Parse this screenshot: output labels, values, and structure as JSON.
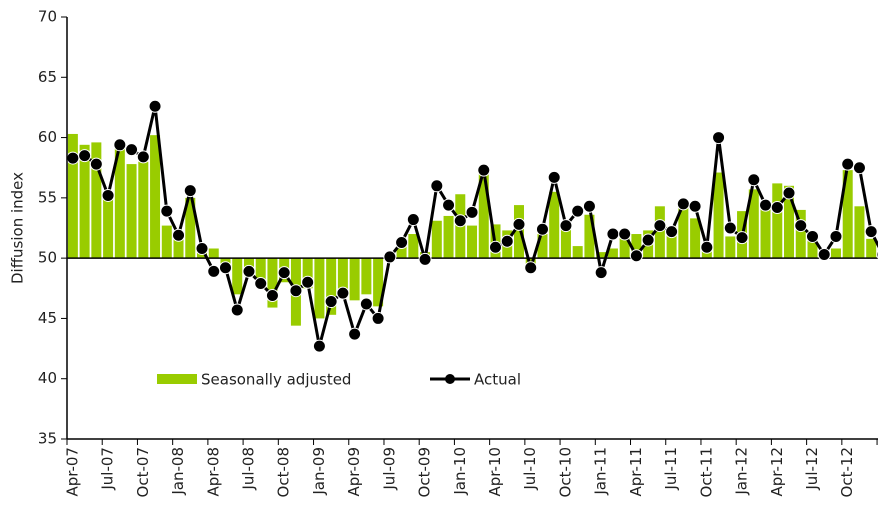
{
  "chart_data": {
    "type": "bar-line",
    "y_axis_label": "Diffusion index",
    "categories": [
      "Apr-07",
      null,
      null,
      "Jul-07",
      null,
      null,
      "Oct-07",
      null,
      null,
      "Jan-08",
      null,
      null,
      "Apr-08",
      null,
      null,
      "Jul-08",
      null,
      null,
      "Oct-08",
      null,
      null,
      "Jan-09",
      null,
      null,
      "Apr-09",
      null,
      null,
      "Jul-09",
      null,
      null,
      "Oct-09",
      null,
      null,
      "Jan-10",
      null,
      null,
      "Apr-10",
      null,
      null,
      "Jul-10",
      null,
      null,
      "Oct-10",
      null,
      null,
      "Jan-11",
      null,
      null,
      "Apr-11",
      null,
      null,
      "Jul-11",
      null,
      null,
      "Oct-11",
      null,
      null,
      "Jan-12",
      null,
      null,
      "Apr-12",
      null,
      null,
      "Jul-12",
      null,
      null,
      "Oct-12",
      null,
      null,
      null
    ],
    "series": [
      {
        "name": "Seasonally adjusted",
        "kind": "bar",
        "color": "#99cc00",
        "values": [
          60.3,
          59.4,
          59.6,
          55.0,
          59.2,
          57.8,
          58.0,
          60.2,
          52.7,
          52.2,
          55.0,
          50.5,
          50.8,
          49.5,
          47.0,
          48.5,
          48.0,
          45.9,
          48.0,
          44.4,
          47.5,
          45.0,
          45.3,
          47.0,
          46.5,
          47.0,
          46.0,
          50.0,
          51.0,
          52.0,
          50.5,
          53.1,
          53.5,
          55.3,
          52.7,
          57.0,
          52.8,
          52.3,
          54.4,
          49.5,
          52.0,
          55.5,
          53.0,
          51.0,
          53.6,
          50.5,
          50.8,
          51.8,
          52.0,
          52.3,
          54.3,
          52.6,
          54.2,
          53.3,
          51.0,
          57.1,
          51.8,
          53.9,
          55.7,
          54.3,
          56.2,
          56.0,
          54.0,
          51.7,
          50.5,
          50.8,
          57.3,
          54.3,
          51.6,
          51.0
        ]
      },
      {
        "name": "Actual",
        "kind": "line",
        "color": "#000000",
        "values": [
          58.3,
          58.5,
          57.8,
          55.2,
          59.4,
          59.0,
          58.4,
          62.6,
          53.9,
          51.9,
          55.6,
          50.8,
          48.9,
          49.2,
          45.7,
          48.9,
          47.9,
          46.9,
          48.8,
          47.3,
          48.0,
          42.7,
          46.4,
          47.1,
          43.7,
          46.2,
          45.0,
          50.1,
          51.3,
          53.2,
          49.9,
          56.0,
          54.4,
          53.1,
          53.8,
          57.3,
          50.9,
          51.4,
          52.8,
          49.2,
          52.4,
          56.7,
          52.7,
          53.9,
          54.3,
          48.8,
          52.0,
          52.0,
          50.2,
          51.5,
          52.7,
          52.2,
          54.5,
          54.3,
          50.9,
          60.0,
          52.5,
          51.7,
          56.5,
          54.4,
          54.2,
          55.4,
          52.7,
          51.8,
          50.3,
          51.8,
          57.8,
          57.5,
          52.2,
          50.3
        ]
      }
    ],
    "ylim": [
      35,
      70
    ],
    "yticks": [
      35,
      40,
      45,
      50,
      55,
      60,
      65,
      70
    ],
    "baseline": 50,
    "legend": "bottom-left",
    "grid": false
  }
}
